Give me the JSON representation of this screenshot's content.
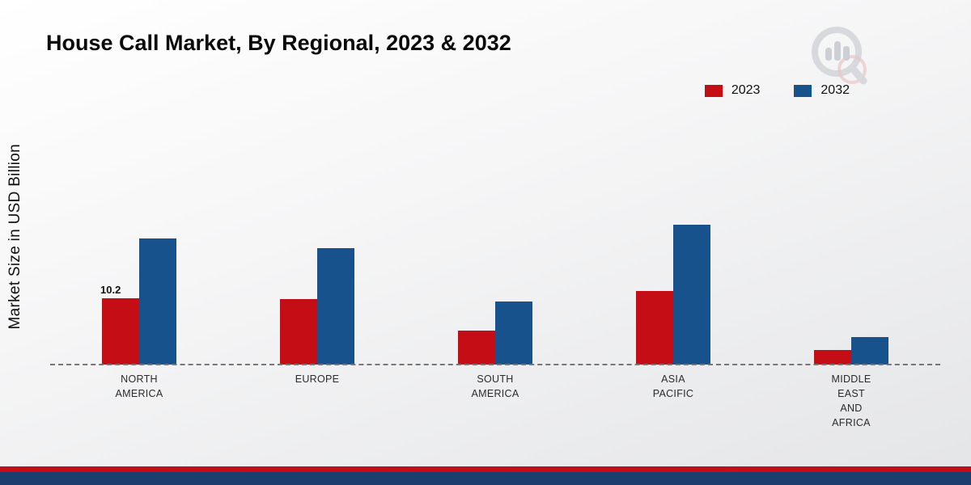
{
  "page": {
    "title": "House Call Market, By Regional, 2023 & 2032",
    "ylabel": "Market Size in USD Billion"
  },
  "brand": {
    "red": "#c50d15",
    "navy": "#1c3e6e",
    "logo_gray": "#ccd0d4",
    "logo_pink": "#e5b6b8"
  },
  "chart_data": {
    "type": "bar",
    "title": "House Call Market, By Regional, 2023 & 2032",
    "xlabel": "",
    "ylabel": "Market Size in USD Billion",
    "grid": false,
    "legend_position": "top-right",
    "baseline": 0,
    "ylim": [
      0,
      24
    ],
    "categories": [
      "NORTH\nAMERICA",
      "EUROPE",
      "SOUTH\nAMERICA",
      "ASIA\nPACIFIC",
      "MIDDLE\nEAST\nAND\nAFRICA"
    ],
    "series": [
      {
        "name": "2023",
        "color": "#c50d15",
        "values": [
          10.2,
          10.1,
          5.3,
          11.4,
          2.3
        ]
      },
      {
        "name": "2032",
        "color": "#17528c",
        "values": [
          19.5,
          18.0,
          9.8,
          21.6,
          4.3
        ]
      }
    ],
    "data_labels": [
      {
        "series": "2023",
        "category_index": 0,
        "text": "10.2"
      }
    ]
  }
}
